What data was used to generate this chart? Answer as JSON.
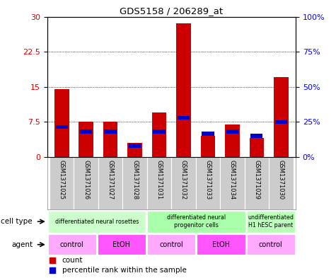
{
  "title": "GDS5158 / 206289_at",
  "samples": [
    "GSM1371025",
    "GSM1371026",
    "GSM1371027",
    "GSM1371028",
    "GSM1371031",
    "GSM1371032",
    "GSM1371033",
    "GSM1371034",
    "GSM1371029",
    "GSM1371030"
  ],
  "count_values": [
    14.5,
    7.5,
    7.5,
    3.0,
    9.5,
    28.5,
    4.5,
    7.0,
    4.0,
    17.0
  ],
  "percentile_values": [
    21.5,
    18.0,
    18.0,
    8.0,
    18.0,
    28.0,
    16.5,
    18.0,
    15.0,
    25.0
  ],
  "left_yticks": [
    0,
    7.5,
    15,
    22.5,
    30
  ],
  "right_yticks": [
    0,
    25,
    50,
    75,
    100
  ],
  "left_ylabels": [
    "0",
    "7.5",
    "15",
    "22.5",
    "30"
  ],
  "right_ylabels": [
    "0%",
    "25%",
    "50%",
    "75%",
    "100%"
  ],
  "ymax": 30,
  "bar_color_count": "#cc0000",
  "bar_color_pct": "#0000cc",
  "cell_type_groups": [
    {
      "label": "differentiated neural rosettes",
      "start": 0,
      "end": 4,
      "color": "#ccffcc"
    },
    {
      "label": "differentiated neural\nprogenitor cells",
      "start": 4,
      "end": 8,
      "color": "#aaffaa"
    },
    {
      "label": "undifferentiated\nH1 hESC parent",
      "start": 8,
      "end": 10,
      "color": "#bbffbb"
    }
  ],
  "agent_groups": [
    {
      "label": "control",
      "start": 0,
      "end": 2,
      "color": "#ffaaff"
    },
    {
      "label": "EtOH",
      "start": 2,
      "end": 4,
      "color": "#ff55ff"
    },
    {
      "label": "control",
      "start": 4,
      "end": 6,
      "color": "#ffaaff"
    },
    {
      "label": "EtOH",
      "start": 6,
      "end": 8,
      "color": "#ff55ff"
    },
    {
      "label": "control",
      "start": 8,
      "end": 10,
      "color": "#ffaaff"
    }
  ],
  "legend_count_color": "#cc0000",
  "legend_pct_color": "#0000cc",
  "cell_type_label": "cell type",
  "agent_label": "agent",
  "bar_width": 0.6,
  "pct_bar_width": 0.5,
  "pct_bar_height": 0.8,
  "sample_bg_color": "#cccccc"
}
